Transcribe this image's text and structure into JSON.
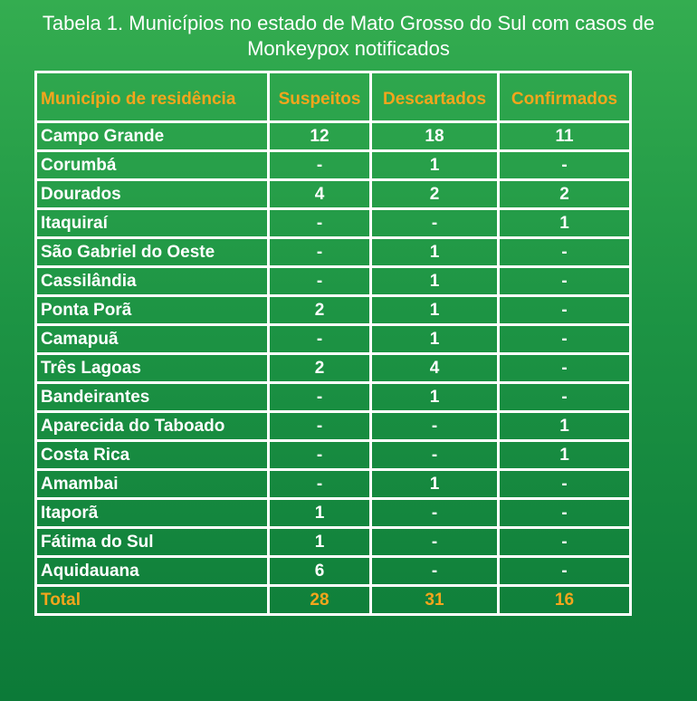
{
  "header": {
    "title": "Tabela 1. Municípios no estado de Mato Grosso do Sul com casos de Monkeypox notificados"
  },
  "table": {
    "columns": [
      "Município de residência",
      "Suspeitos",
      "Descartados",
      "Confirmados"
    ],
    "rows": [
      [
        "Campo Grande",
        "12",
        "18",
        "11"
      ],
      [
        "Corumbá",
        "-",
        "1",
        "-"
      ],
      [
        "Dourados",
        "4",
        "2",
        "2"
      ],
      [
        "Itaquiraí",
        "-",
        "-",
        "1"
      ],
      [
        "São Gabriel do Oeste",
        "-",
        "1",
        "-"
      ],
      [
        "Cassilândia",
        "-",
        "1",
        "-"
      ],
      [
        "Ponta Porã",
        "2",
        "1",
        "-"
      ],
      [
        "Camapuã",
        "-",
        "1",
        "-"
      ],
      [
        "Três Lagoas",
        "2",
        "4",
        "-"
      ],
      [
        "Bandeirantes",
        "-",
        "1",
        "-"
      ],
      [
        "Aparecida do Taboado",
        "-",
        "-",
        "1"
      ],
      [
        "Costa Rica",
        "-",
        "-",
        "1"
      ],
      [
        "Amambai",
        "-",
        "1",
        "-"
      ],
      [
        "Itaporã",
        "1",
        "-",
        "-"
      ],
      [
        "Fátima do Sul",
        "1",
        "-",
        "-"
      ],
      [
        "Aquidauana",
        "6",
        "-",
        "-"
      ]
    ],
    "total": [
      "Total",
      "28",
      "31",
      "16"
    ]
  }
}
